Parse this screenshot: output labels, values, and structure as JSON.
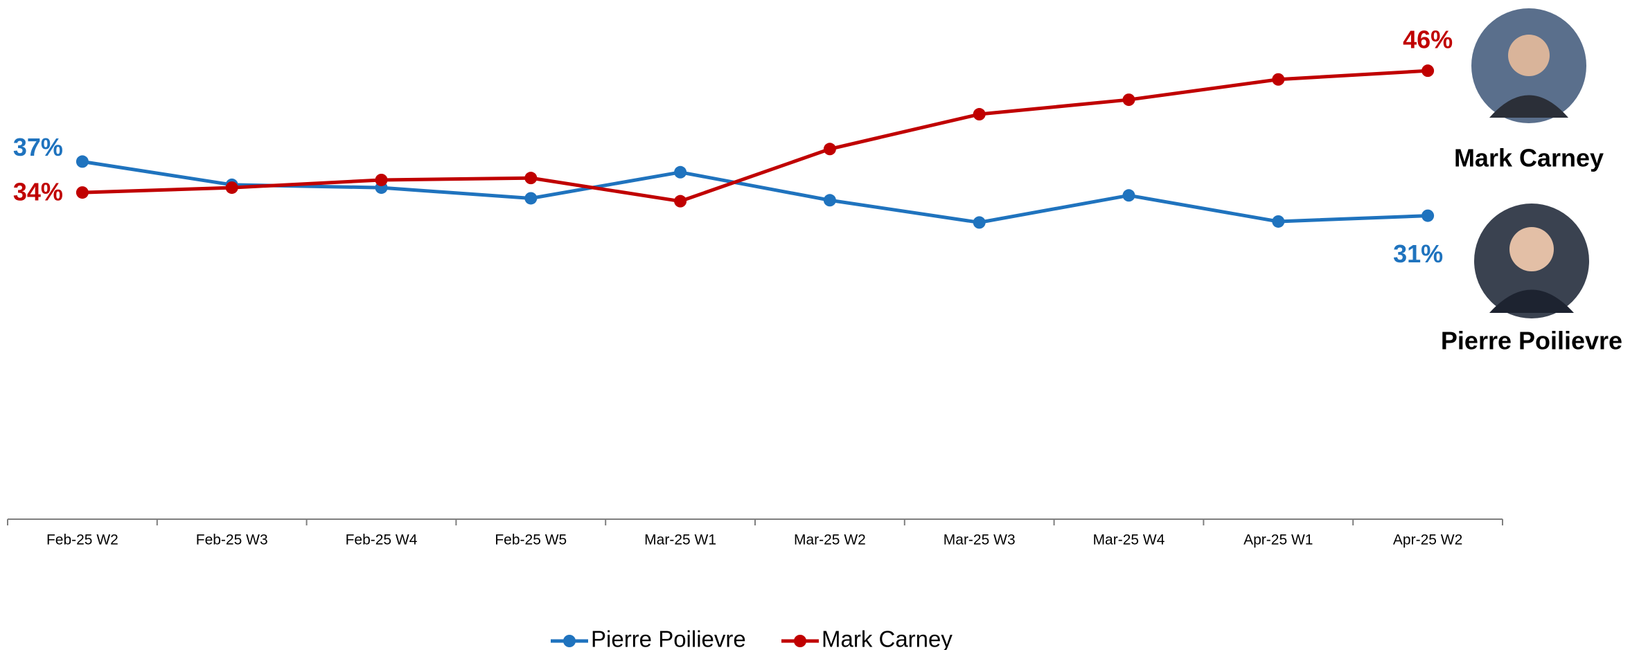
{
  "chart_data": {
    "type": "line",
    "categories": [
      "Feb-25 W2",
      "Feb-25 W3",
      "Feb-25 W4",
      "Feb-25 W5",
      "Mar-25 W1",
      "Mar-25 W2",
      "Mar-25 W3",
      "Mar-25 W4",
      "Apr-25 W1",
      "Apr-25 W2"
    ],
    "series": [
      {
        "name": "Pierre Poilievre",
        "color": "#1f73be",
        "values": [
          37.0,
          34.6,
          34.3,
          33.2,
          35.9,
          33.0,
          30.7,
          33.5,
          30.8,
          31.4
        ],
        "value_labels": [
          "37%",
          null,
          null,
          null,
          null,
          null,
          null,
          null,
          null,
          "31%"
        ]
      },
      {
        "name": "Mark Carney",
        "color": "#c00000",
        "values": [
          33.8,
          34.3,
          35.1,
          35.3,
          32.9,
          38.3,
          41.9,
          43.4,
          45.5,
          46.4
        ],
        "value_labels": [
          "34%",
          null,
          null,
          null,
          null,
          null,
          null,
          null,
          null,
          "46%"
        ]
      }
    ],
    "ylim": [
      0,
      52
    ],
    "legend": "bottom",
    "annotations": [
      "Mark Carney",
      "Pierre Poilievre"
    ]
  }
}
